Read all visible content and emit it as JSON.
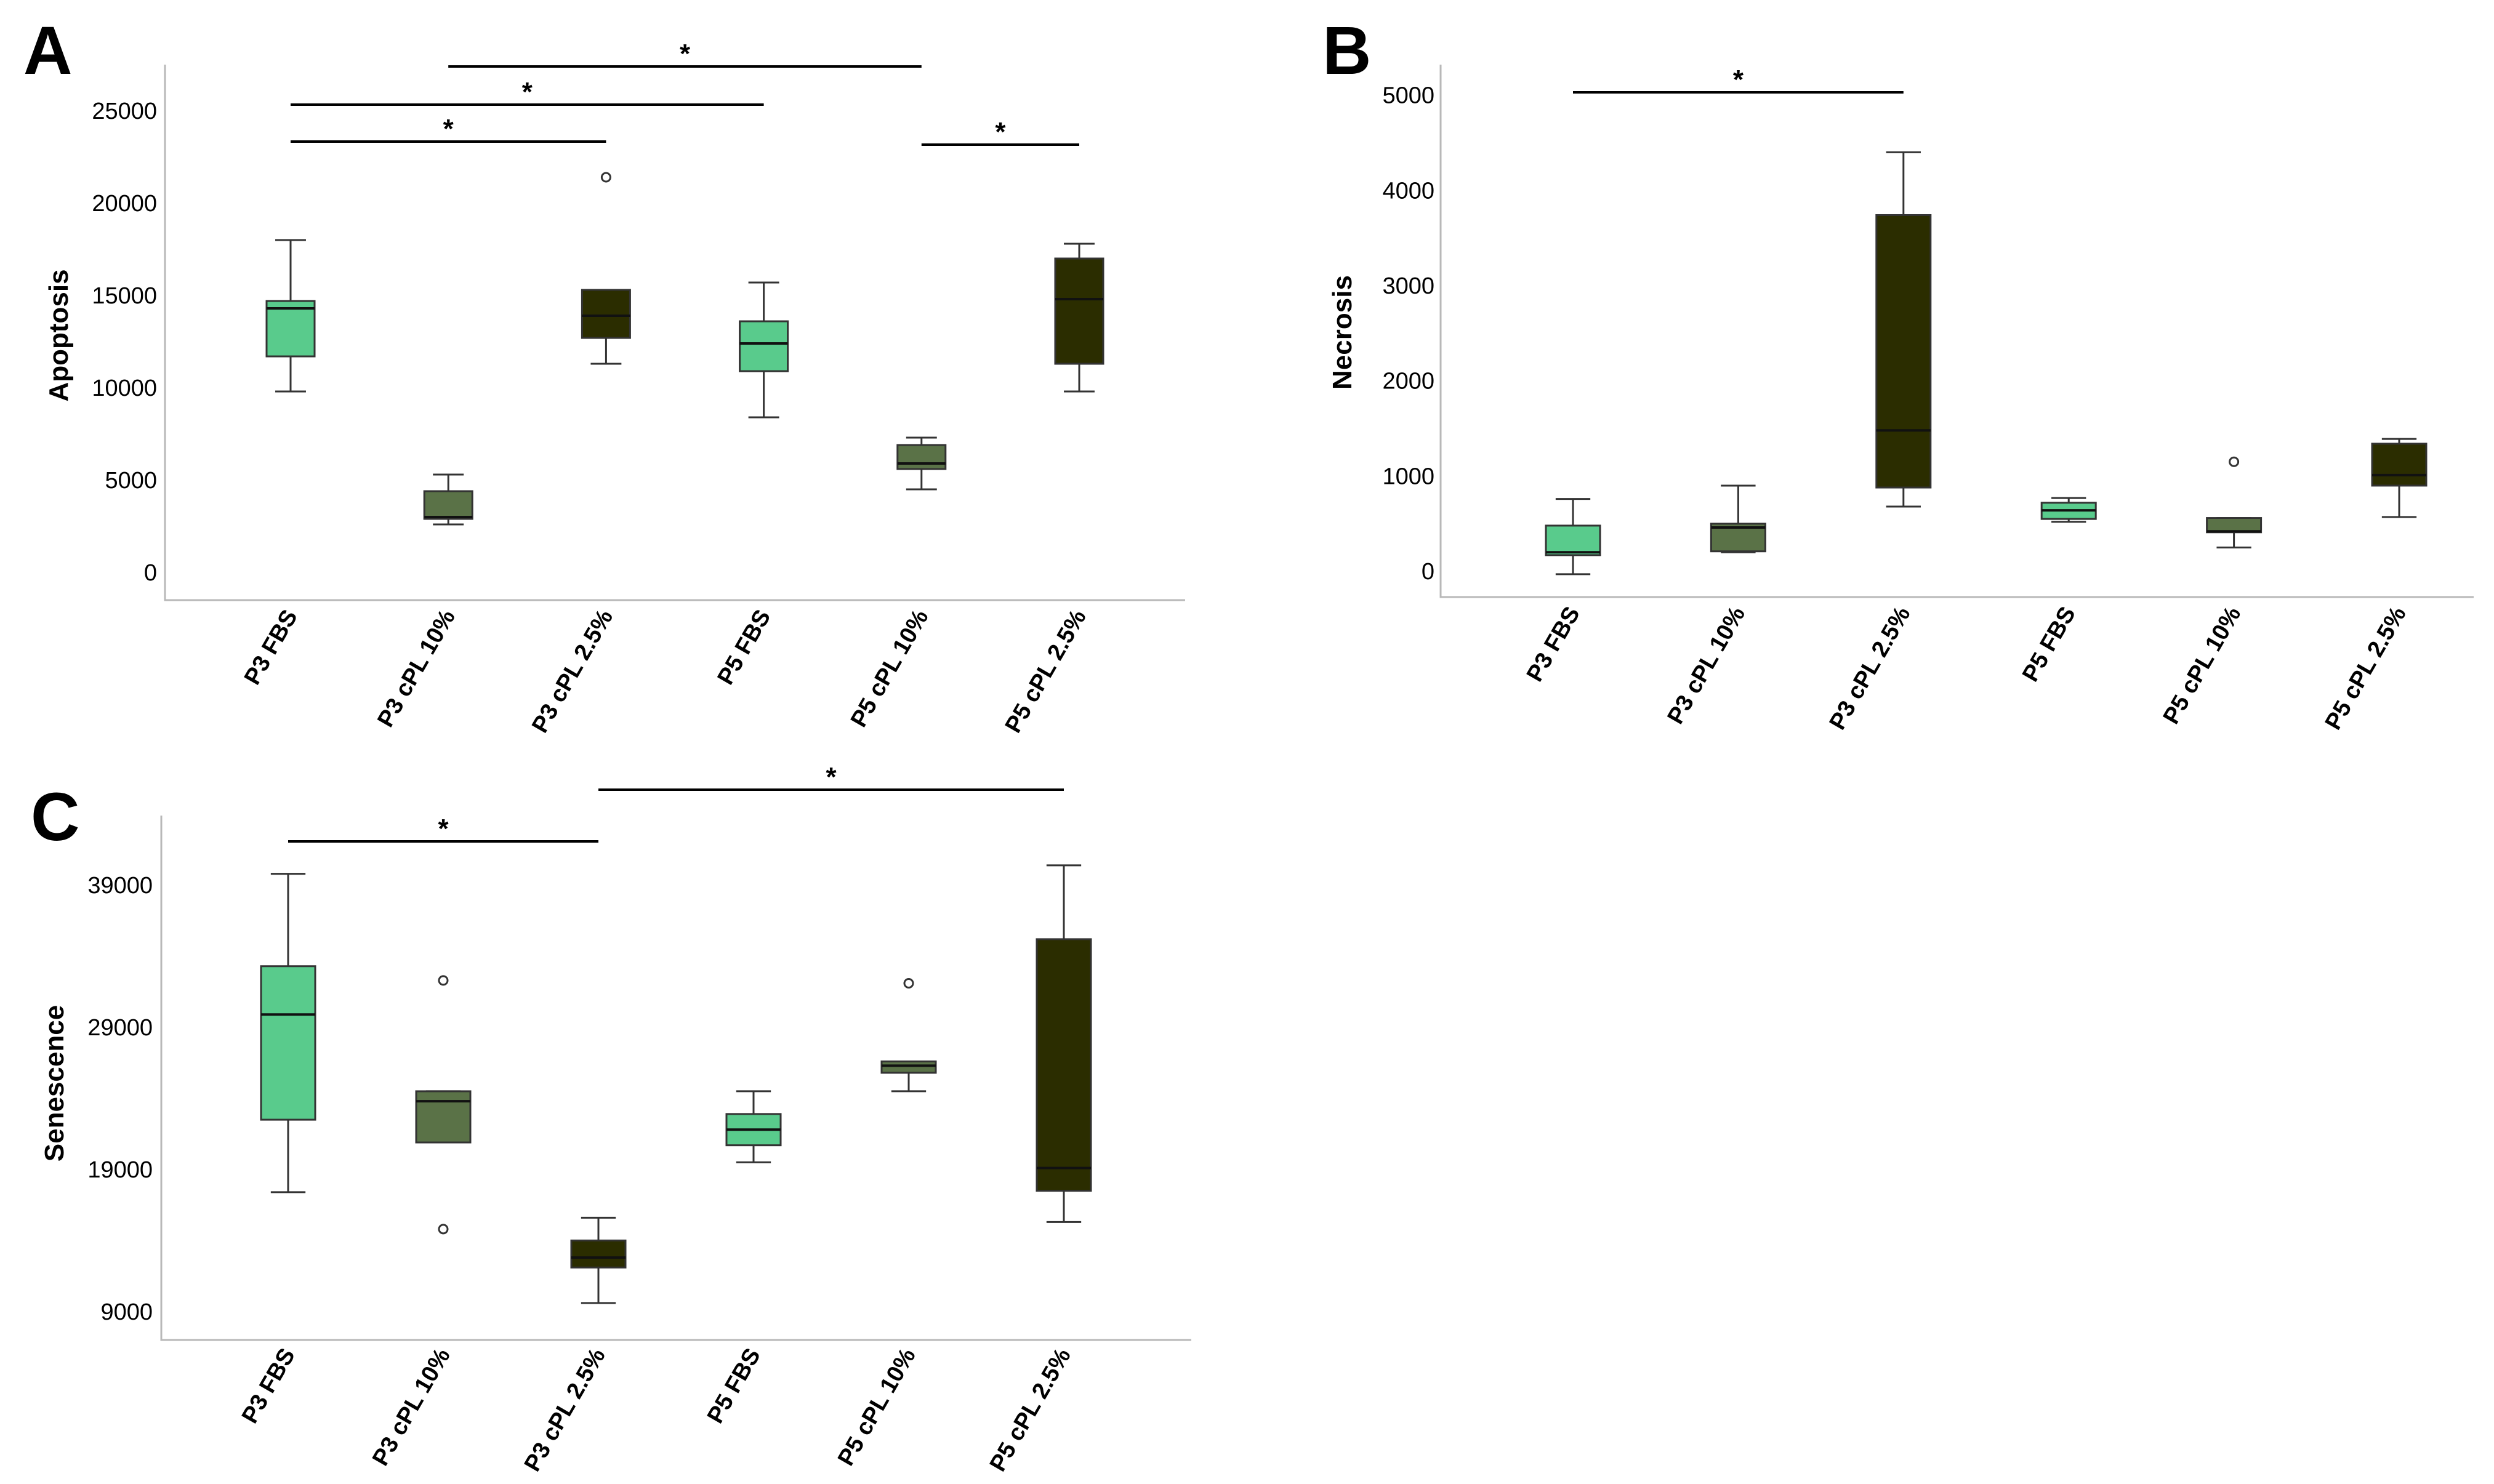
{
  "colors": {
    "fbs": "#59cb8c",
    "cpl10": "#5a7247",
    "cpl25": "#2b2d00",
    "axis": "#b8b8b8",
    "stroke": "#333333"
  },
  "chart_data": [
    {
      "panel": "A",
      "type": "box",
      "ylabel": "Apoptosis",
      "ylim": [
        -1500,
        27500
      ],
      "yticks": [
        0,
        5000,
        10000,
        15000,
        20000,
        25000
      ],
      "categories": [
        "P3 FBS",
        "P3 cPL 10%",
        "P3 cPL 2.5%",
        "P5 FBS",
        "P5 cPL 10%",
        "P5 cPL 2.5%"
      ],
      "series_colors": [
        "fbs",
        "cpl10",
        "cpl25",
        "fbs",
        "cpl10",
        "cpl25"
      ],
      "boxes": [
        {
          "min": 9800,
          "q1": 11700,
          "median": 14300,
          "q3": 14700,
          "max": 18000,
          "outliers": []
        },
        {
          "min": 2600,
          "q1": 2900,
          "median": 3000,
          "q3": 4400,
          "max": 5300,
          "outliers": []
        },
        {
          "min": 11300,
          "q1": 12700,
          "median": 13900,
          "q3": 15300,
          "max": 15300,
          "outliers": [
            21400
          ]
        },
        {
          "min": 8400,
          "q1": 10900,
          "median": 12400,
          "q3": 13600,
          "max": 15700,
          "outliers": []
        },
        {
          "min": 4500,
          "q1": 5600,
          "median": 5900,
          "q3": 6900,
          "max": 7300,
          "outliers": []
        },
        {
          "min": 9800,
          "q1": 11300,
          "median": 14800,
          "q3": 17000,
          "max": 17800,
          "outliers": []
        }
      ],
      "significance": [
        {
          "from": 0,
          "to": 2,
          "label": "*"
        },
        {
          "from": 0,
          "to": 3,
          "label": "*"
        },
        {
          "from": 1,
          "to": 4,
          "label": "*"
        },
        {
          "from": 4,
          "to": 5,
          "label": "*"
        }
      ]
    },
    {
      "panel": "B",
      "type": "box",
      "ylabel": "Necrosis",
      "ylim": [
        -270,
        5320
      ],
      "yticks": [
        0,
        1000,
        2000,
        3000,
        4000,
        5000
      ],
      "categories": [
        "P3 FBS",
        "P3 cPL 10%",
        "P3 cPL 2.5%",
        "P5 FBS",
        "P5 cPL 10%",
        "P5 cPL 2.5%"
      ],
      "series_colors": [
        "fbs",
        "cpl10",
        "cpl25",
        "fbs",
        "cpl10",
        "cpl25"
      ],
      "boxes": [
        {
          "min": -30,
          "q1": 170,
          "median": 200,
          "q3": 480,
          "max": 760,
          "outliers": []
        },
        {
          "min": 200,
          "q1": 210,
          "median": 460,
          "q3": 500,
          "max": 900,
          "outliers": []
        },
        {
          "min": 680,
          "q1": 880,
          "median": 1480,
          "q3": 3740,
          "max": 4400,
          "outliers": []
        },
        {
          "min": 520,
          "q1": 550,
          "median": 640,
          "q3": 720,
          "max": 770,
          "outliers": []
        },
        {
          "min": 250,
          "q1": 410,
          "median": 420,
          "q3": 560,
          "max": 560,
          "outliers": [
            1150
          ]
        },
        {
          "min": 570,
          "q1": 900,
          "median": 1010,
          "q3": 1340,
          "max": 1390,
          "outliers": []
        }
      ],
      "significance": [
        {
          "from": 0,
          "to": 2,
          "label": "*"
        }
      ]
    },
    {
      "panel": "C",
      "type": "box",
      "ylabel": "Senescence",
      "ylim": [
        7000,
        43900
      ],
      "yticks": [
        9000,
        19000,
        29000,
        39000
      ],
      "categories": [
        "P3 FBS",
        "P3 cPL 10%",
        "P3 cPL 2.5%",
        "P5 FBS",
        "P5 cPL 10%",
        "P5 cPL 2.5%"
      ],
      "series_colors": [
        "fbs",
        "cpl10",
        "cpl25",
        "fbs",
        "cpl10",
        "cpl25"
      ],
      "boxes": [
        {
          "min": 17400,
          "q1": 22500,
          "median": 29900,
          "q3": 33300,
          "max": 39800,
          "outliers": []
        },
        {
          "min": 20900,
          "q1": 20900,
          "median": 23800,
          "q3": 24500,
          "max": 24500,
          "outliers": [
            32300,
            14800
          ]
        },
        {
          "min": 9600,
          "q1": 12100,
          "median": 12800,
          "q3": 14000,
          "max": 15600,
          "outliers": []
        },
        {
          "min": 19500,
          "q1": 20700,
          "median": 21800,
          "q3": 22900,
          "max": 24500,
          "outliers": []
        },
        {
          "min": 24500,
          "q1": 25800,
          "median": 26300,
          "q3": 26600,
          "max": 26600,
          "outliers": [
            32100
          ]
        },
        {
          "min": 15300,
          "q1": 17500,
          "median": 19100,
          "q3": 35200,
          "max": 40400,
          "outliers": []
        }
      ],
      "significance": [
        {
          "from": 0,
          "to": 2,
          "label": "*"
        },
        {
          "from": 2,
          "to": 5,
          "label": "*"
        }
      ]
    }
  ]
}
